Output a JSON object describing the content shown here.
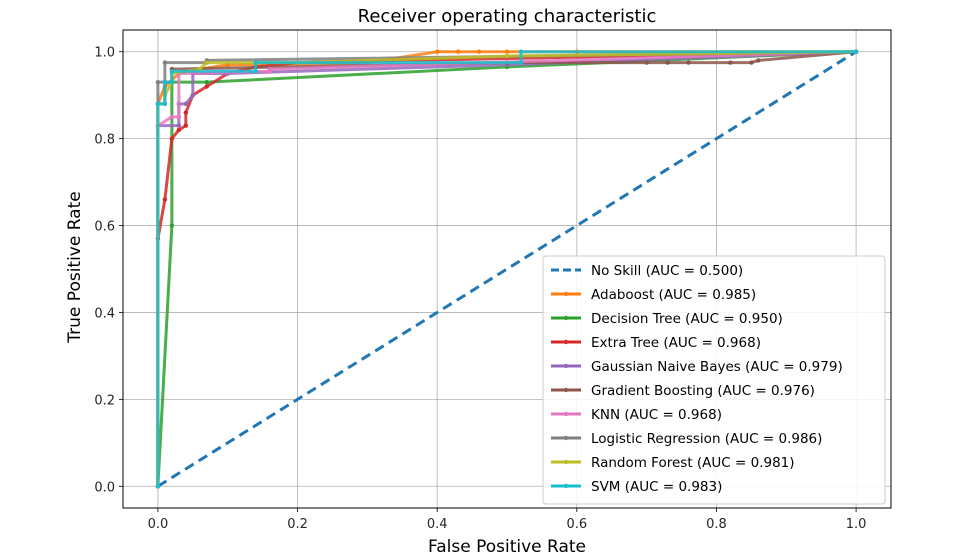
{
  "chart_data": {
    "type": "line",
    "title": "Receiver operating characteristic",
    "xlabel": "False Positive Rate",
    "ylabel": "True Positive Rate",
    "xlim": [
      -0.05,
      1.05
    ],
    "ylim": [
      -0.05,
      1.05
    ],
    "xticks": [
      0.0,
      0.2,
      0.4,
      0.6,
      0.8,
      1.0
    ],
    "yticks": [
      0.0,
      0.2,
      0.4,
      0.6,
      0.8,
      1.0
    ],
    "xtick_labels": [
      "0.0",
      "0.2",
      "0.4",
      "0.6",
      "0.8",
      "1.0"
    ],
    "ytick_labels": [
      "0.0",
      "0.2",
      "0.4",
      "0.6",
      "0.8",
      "1.0"
    ],
    "grid": true,
    "legend_position": "lower-right",
    "series": [
      {
        "name": "No Skill",
        "auc": "0.500",
        "color": "#1f77b4",
        "dashed": true,
        "markers": false,
        "x": [
          0,
          1
        ],
        "y": [
          0,
          1
        ]
      },
      {
        "name": "Adaboost",
        "auc": "0.985",
        "color": "#ff7f0e",
        "x": [
          0,
          0,
          0.01,
          0.03,
          0.06,
          0.1,
          0.3,
          0.4,
          0.43,
          0.46,
          0.5,
          0.6,
          1.0
        ],
        "y": [
          0,
          0.88,
          0.92,
          0.95,
          0.96,
          0.97,
          0.975,
          1.0,
          1.0,
          1.0,
          1.0,
          1.0,
          1.0
        ]
      },
      {
        "name": "Decision Tree",
        "auc": "0.950",
        "color": "#2ca02c",
        "x": [
          0,
          0.02,
          0.02,
          0.07,
          0.5,
          1.0
        ],
        "y": [
          0,
          0.6,
          0.93,
          0.93,
          0.965,
          1.0
        ]
      },
      {
        "name": "Extra Tree",
        "auc": "0.968",
        "color": "#d62728",
        "x": [
          0,
          0,
          0.01,
          0.02,
          0.03,
          0.04,
          0.04,
          0.05,
          0.07,
          0.1,
          0.14,
          0.2,
          1.0
        ],
        "y": [
          0,
          0.57,
          0.66,
          0.8,
          0.82,
          0.83,
          0.86,
          0.9,
          0.92,
          0.95,
          0.965,
          0.975,
          1.0
        ]
      },
      {
        "name": "Gaussian Naive Bayes",
        "auc": "0.979",
        "color": "#9467bd",
        "x": [
          0,
          0,
          0.03,
          0.03,
          0.04,
          0.05,
          0.05,
          0.1,
          0.5,
          1.0
        ],
        "y": [
          0,
          0.83,
          0.83,
          0.88,
          0.88,
          0.9,
          0.95,
          0.95,
          0.97,
          1.0
        ]
      },
      {
        "name": "Gradient Boosting",
        "auc": "0.976",
        "color": "#8c564b",
        "x": [
          0,
          0,
          0.01,
          0.01,
          0.02,
          0.02,
          0.5,
          0.7,
          0.73,
          0.76,
          0.82,
          0.85,
          0.86,
          1.0
        ],
        "y": [
          0,
          0.88,
          0.88,
          0.93,
          0.93,
          0.96,
          0.975,
          0.975,
          0.975,
          0.975,
          0.975,
          0.975,
          0.98,
          1.0
        ]
      },
      {
        "name": "KNN",
        "auc": "0.968",
        "color": "#e377c2",
        "x": [
          0,
          0,
          0.02,
          0.03,
          0.03,
          0.16,
          0.16,
          1.0
        ],
        "y": [
          0,
          0.83,
          0.85,
          0.85,
          0.95,
          0.955,
          0.96,
          1.0
        ]
      },
      {
        "name": "Logistic Regression",
        "auc": "0.986",
        "color": "#7f7f7f",
        "x": [
          0,
          0,
          0.01,
          0.01,
          0.07,
          0.07,
          1.0
        ],
        "y": [
          0,
          0.93,
          0.93,
          0.975,
          0.975,
          0.98,
          1.0
        ]
      },
      {
        "name": "Random Forest",
        "auc": "0.981",
        "color": "#bcbd22",
        "x": [
          0,
          0,
          0.01,
          0.01,
          0.02,
          0.02,
          0.06,
          0.07,
          0.2,
          0.5,
          1.0
        ],
        "y": [
          0,
          0.88,
          0.88,
          0.9,
          0.93,
          0.95,
          0.96,
          0.975,
          0.975,
          0.99,
          1.0
        ]
      },
      {
        "name": "SVM",
        "auc": "0.983",
        "color": "#17becf",
        "x": [
          0,
          0,
          0.01,
          0.01,
          0.02,
          0.02,
          0.14,
          0.14,
          0.52,
          0.52,
          1.0
        ],
        "y": [
          0,
          0.88,
          0.88,
          0.93,
          0.93,
          0.955,
          0.955,
          0.975,
          0.975,
          1.0,
          1.0
        ]
      }
    ]
  }
}
